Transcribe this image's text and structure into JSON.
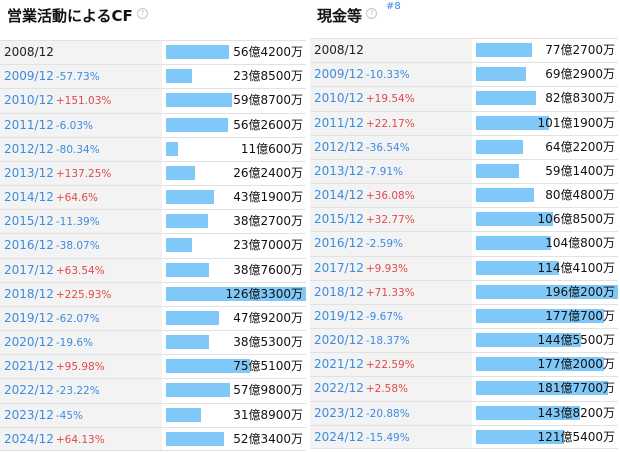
{
  "colors": {
    "bar": "#7fc8f8",
    "link": "#3c8be0",
    "up": "#e04a4a",
    "label_bg": "#f3f3f3"
  },
  "left": {
    "title": "営業活動によるCF",
    "help_icon": "question-circle-icon",
    "rows": [
      {
        "year": "2008/12",
        "change": "",
        "value": "56億4200万",
        "amount_oku": 56.42
      },
      {
        "year": "2009/12",
        "change": "-57.73%",
        "value": "23億8500万",
        "amount_oku": 23.85
      },
      {
        "year": "2010/12",
        "change": "+151.03%",
        "value": "59億8700万",
        "amount_oku": 59.87
      },
      {
        "year": "2011/12",
        "change": "-6.03%",
        "value": "56億2600万",
        "amount_oku": 56.26
      },
      {
        "year": "2012/12",
        "change": "-80.34%",
        "value": "11億600万",
        "amount_oku": 11.06
      },
      {
        "year": "2013/12",
        "change": "+137.25%",
        "value": "26億2400万",
        "amount_oku": 26.24
      },
      {
        "year": "2014/12",
        "change": "+64.6%",
        "value": "43億1900万",
        "amount_oku": 43.19
      },
      {
        "year": "2015/12",
        "change": "-11.39%",
        "value": "38億2700万",
        "amount_oku": 38.27
      },
      {
        "year": "2016/12",
        "change": "-38.07%",
        "value": "23億7000万",
        "amount_oku": 23.7
      },
      {
        "year": "2017/12",
        "change": "+63.54%",
        "value": "38億7600万",
        "amount_oku": 38.76
      },
      {
        "year": "2018/12",
        "change": "+225.93%",
        "value": "126億3300万",
        "amount_oku": 126.33
      },
      {
        "year": "2019/12",
        "change": "-62.07%",
        "value": "47億9200万",
        "amount_oku": 47.92
      },
      {
        "year": "2020/12",
        "change": "-19.6%",
        "value": "38億5300万",
        "amount_oku": 38.53
      },
      {
        "year": "2021/12",
        "change": "+95.98%",
        "value": "75億5100万",
        "amount_oku": 75.51
      },
      {
        "year": "2022/12",
        "change": "-23.22%",
        "value": "57億9800万",
        "amount_oku": 57.98
      },
      {
        "year": "2023/12",
        "change": "-45%",
        "value": "31億8900万",
        "amount_oku": 31.89
      },
      {
        "year": "2024/12",
        "change": "+64.13%",
        "value": "52億3400万",
        "amount_oku": 52.34
      }
    ]
  },
  "right": {
    "title": "現金等",
    "help_icon": "question-circle-icon",
    "rank": "#8",
    "rows": [
      {
        "year": "2008/12",
        "change": "",
        "value": "77億2700万",
        "amount_oku": 77.27
      },
      {
        "year": "2009/12",
        "change": "-10.33%",
        "value": "69億2900万",
        "amount_oku": 69.29
      },
      {
        "year": "2010/12",
        "change": "+19.54%",
        "value": "82億8300万",
        "amount_oku": 82.83
      },
      {
        "year": "2011/12",
        "change": "+22.17%",
        "value": "101億1900万",
        "amount_oku": 101.19
      },
      {
        "year": "2012/12",
        "change": "-36.54%",
        "value": "64億2200万",
        "amount_oku": 64.22
      },
      {
        "year": "2013/12",
        "change": "-7.91%",
        "value": "59億1400万",
        "amount_oku": 59.14
      },
      {
        "year": "2014/12",
        "change": "+36.08%",
        "value": "80億4800万",
        "amount_oku": 80.48
      },
      {
        "year": "2015/12",
        "change": "+32.77%",
        "value": "106億8500万",
        "amount_oku": 106.85
      },
      {
        "year": "2016/12",
        "change": "-2.59%",
        "value": "104億800万",
        "amount_oku": 104.08
      },
      {
        "year": "2017/12",
        "change": "+9.93%",
        "value": "114億4100万",
        "amount_oku": 114.41
      },
      {
        "year": "2018/12",
        "change": "+71.33%",
        "value": "196億200万",
        "amount_oku": 196.02
      },
      {
        "year": "2019/12",
        "change": "-9.67%",
        "value": "177億700万",
        "amount_oku": 177.07
      },
      {
        "year": "2020/12",
        "change": "-18.37%",
        "value": "144億5500万",
        "amount_oku": 144.55
      },
      {
        "year": "2021/12",
        "change": "+22.59%",
        "value": "177億2000万",
        "amount_oku": 177.2
      },
      {
        "year": "2022/12",
        "change": "+2.58%",
        "value": "181億7700万",
        "amount_oku": 181.77
      },
      {
        "year": "2023/12",
        "change": "-20.88%",
        "value": "143億8200万",
        "amount_oku": 143.82
      },
      {
        "year": "2024/12",
        "change": "-15.49%",
        "value": "121億5400万",
        "amount_oku": 121.54
      }
    ]
  }
}
